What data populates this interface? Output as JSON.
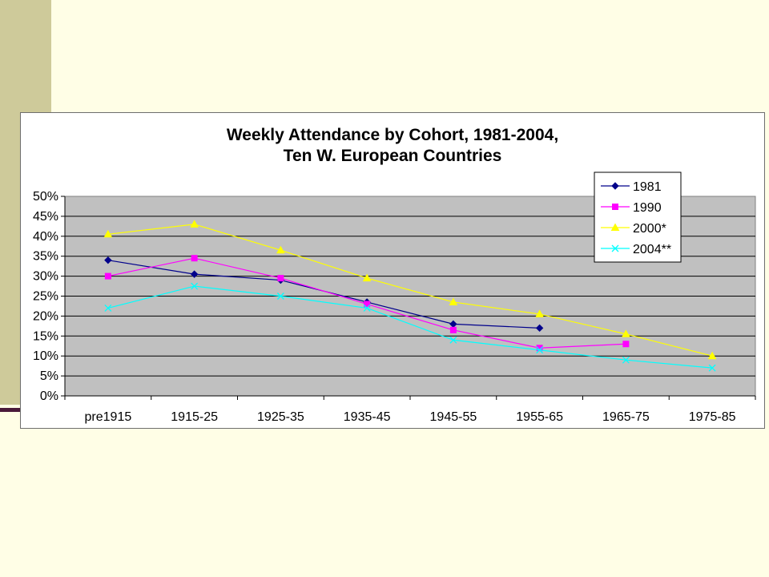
{
  "chart_data": {
    "type": "line",
    "title": [
      "Weekly Attendance by Cohort, 1981-2004,",
      "Ten W. European Countries"
    ],
    "categories": [
      "pre1915",
      "1915-25",
      "1925-35",
      "1935-45",
      "1945-55",
      "1955-65",
      "1965-75",
      "1975-85"
    ],
    "yticks": [
      "0%",
      "5%",
      "10%",
      "15%",
      "20%",
      "25%",
      "30%",
      "35%",
      "40%",
      "45%",
      "50%"
    ],
    "ylim": [
      0,
      50
    ],
    "grid": true,
    "legend": "top-right",
    "plot_bg": "#C0C0C0",
    "series": [
      {
        "name": "1981",
        "color": "#00008B",
        "marker": "diamond",
        "values": [
          34,
          30.5,
          29,
          23.5,
          18,
          17,
          null,
          null
        ]
      },
      {
        "name": "1990",
        "color": "#FF00FF",
        "marker": "square",
        "values": [
          30,
          34.5,
          29.5,
          23,
          16.5,
          12,
          13,
          null
        ]
      },
      {
        "name": "2000*",
        "color": "#FFFF00",
        "marker": "triangle",
        "values": [
          40.5,
          43,
          36.5,
          29.5,
          23.5,
          20.5,
          15.5,
          10
        ]
      },
      {
        "name": "2004**",
        "color": "#00FFFF",
        "marker": "x",
        "values": [
          22,
          27.5,
          25,
          22,
          14,
          11.5,
          9,
          7
        ]
      }
    ]
  }
}
